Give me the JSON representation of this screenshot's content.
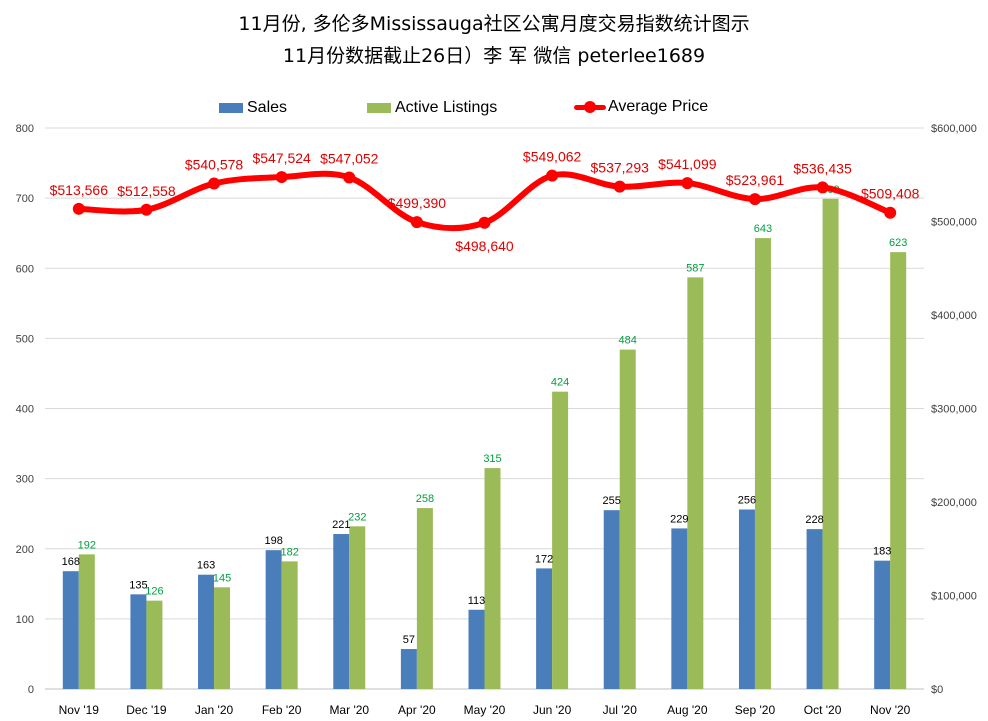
{
  "title_line1": "11月份, 多伦多Mississauga社区公寓月度交易指数统计图示",
  "title_line2": "11月份数据截止26日）李 军 微信 peterlee1689",
  "chart_data": {
    "type": "bar",
    "categories": [
      "Nov '19",
      "Dec '19",
      "Jan '20",
      "Feb '20",
      "Mar '20",
      "Apr '20",
      "May '20",
      "Jun '20",
      "Jul '20",
      "Aug '20",
      "Sep '20",
      "Oct '20",
      "Nov '20"
    ],
    "series": [
      {
        "name": "Sales",
        "type": "bar",
        "axis": "left",
        "color": "#4a7ebb",
        "values": [
          168,
          135,
          163,
          198,
          221,
          57,
          113,
          172,
          255,
          229,
          256,
          228,
          183
        ],
        "labels": [
          "168",
          "135",
          "163",
          "198",
          "221",
          "57",
          "113",
          "172",
          "255",
          "229",
          "256",
          "228",
          "183"
        ]
      },
      {
        "name": "Active Listings",
        "type": "bar",
        "axis": "left",
        "color": "#9bbb59",
        "values": [
          192,
          126,
          145,
          182,
          232,
          258,
          315,
          424,
          484,
          587,
          643,
          699,
          623
        ],
        "labels": [
          "192",
          "126",
          "145",
          "182",
          "232",
          "258",
          "315",
          "424",
          "484",
          "587",
          "643",
          "699",
          "623"
        ]
      },
      {
        "name": "Average Price",
        "type": "line",
        "axis": "right",
        "color": "#ff0000",
        "values": [
          513566,
          512558,
          540578,
          547524,
          547052,
          499390,
          498640,
          549062,
          537293,
          541099,
          523961,
          536435,
          509408
        ],
        "labels": [
          "$513,566",
          "$512,558",
          "$540,578",
          "$547,524",
          "$547,052",
          "$499,390",
          "$498,640",
          "$549,062",
          "$537,293",
          "$541,099",
          "$523,961",
          "$536,435",
          "$509,408"
        ]
      }
    ],
    "ylim_left": [
      0,
      800
    ],
    "yticks_left": [
      "0",
      "100",
      "200",
      "300",
      "400",
      "500",
      "600",
      "700",
      "800"
    ],
    "ylim_right": [
      0,
      600000
    ],
    "yticks_right": [
      "$0",
      "$100,000",
      "$200,000",
      "$300,000",
      "$400,000",
      "$500,000",
      "$600,000"
    ],
    "grid": true,
    "legend_position": "top"
  }
}
